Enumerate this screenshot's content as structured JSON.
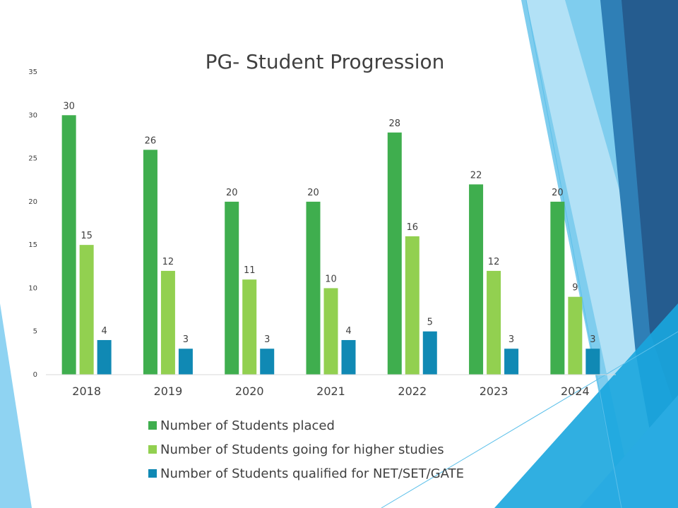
{
  "chart_data": {
    "type": "bar",
    "title": "PG- Student Progression",
    "categories": [
      "2018",
      "2019",
      "2020",
      "2021",
      "2022",
      "2023",
      "2024"
    ],
    "series": [
      {
        "name": "Number of Students placed",
        "color": "#3fae4e",
        "values": [
          30,
          26,
          20,
          20,
          28,
          22,
          20
        ]
      },
      {
        "name": "Number of Students going for higher studies",
        "color": "#92d050",
        "values": [
          15,
          12,
          11,
          10,
          16,
          12,
          9
        ]
      },
      {
        "name": "Number of Students qualified for NET/SET/GATE",
        "color": "#1089b4",
        "values": [
          4,
          3,
          3,
          4,
          5,
          3,
          3
        ]
      }
    ],
    "ylim": [
      0,
      35
    ],
    "yticks": [
      0,
      5,
      10,
      15,
      20,
      25,
      30,
      35
    ],
    "grid": false,
    "legend_position": "bottom"
  }
}
